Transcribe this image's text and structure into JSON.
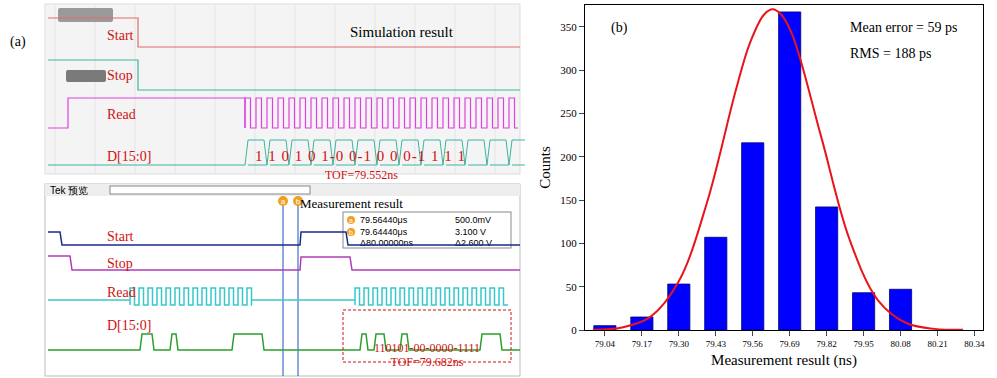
{
  "panel_a": {
    "label": "(a)",
    "simulation": {
      "title": "Simulation result",
      "signals": [
        "Start",
        "Stop",
        "Read",
        "D[15:0]"
      ],
      "data_bits": "1 1 0 1 0 1-0 0-1 0 0 0-1 1 1 1",
      "tof": "TOF=79.552ns"
    },
    "measurement": {
      "title": "Measurement result",
      "scope_label": "Tek 预览",
      "signals": [
        "Start",
        "Stop",
        "Read",
        "D[15:0]"
      ],
      "cursor_labels": [
        "a",
        "b"
      ],
      "cursor_a": "79.56440μs",
      "cursor_a_v": "500.0mV",
      "cursor_b": "79.64440μs",
      "cursor_b_v": "3.100 V",
      "delta_t": "Δ80.00000ns",
      "delta_v": "Δ2.600 V",
      "data_bits": "110101-00-0000-1111",
      "tof": "TOF=79.682ns"
    }
  },
  "chart_data": {
    "type": "bar",
    "annotations": [
      "(b)",
      "Mean error = 59 ps",
      "RMS = 188 ps"
    ],
    "x_label": "Measurement result (ns)",
    "y_label": "Counts",
    "series": [
      {
        "type": "bar",
        "color": "#0000ff",
        "x": [
          79.04,
          79.17,
          79.3,
          79.43,
          79.56,
          79.69,
          79.82,
          79.95,
          80.08
        ],
        "values": [
          5,
          15,
          53,
          107,
          216,
          367,
          142,
          43,
          47
        ]
      },
      {
        "type": "line",
        "color": "#e8141a",
        "x": [
          79.0,
          79.1,
          79.2,
          79.3,
          79.4,
          79.5,
          79.55,
          79.6,
          79.63,
          79.66,
          79.7,
          79.8,
          79.9,
          80.0,
          80.1,
          80.2,
          80.3
        ],
        "values": [
          0.4,
          2.9,
          15.1,
          56.2,
          148,
          276,
          331,
          364,
          370,
          364,
          340,
          224,
          105,
          34.6,
          8.1,
          1.3,
          0.2
        ]
      }
    ],
    "xlim": [
      78.97,
      80.37
    ],
    "xticks": [
      79.04,
      79.17,
      {
        "value": 79.3,
        "label": "79.30"
      },
      79.43,
      79.56,
      79.69,
      79.82,
      79.95,
      80.08,
      80.21,
      80.34
    ],
    "ylim": [
      0,
      375
    ],
    "yticks": [
      0,
      50,
      100,
      150,
      200,
      250,
      300,
      350
    ],
    "grid": false
  }
}
